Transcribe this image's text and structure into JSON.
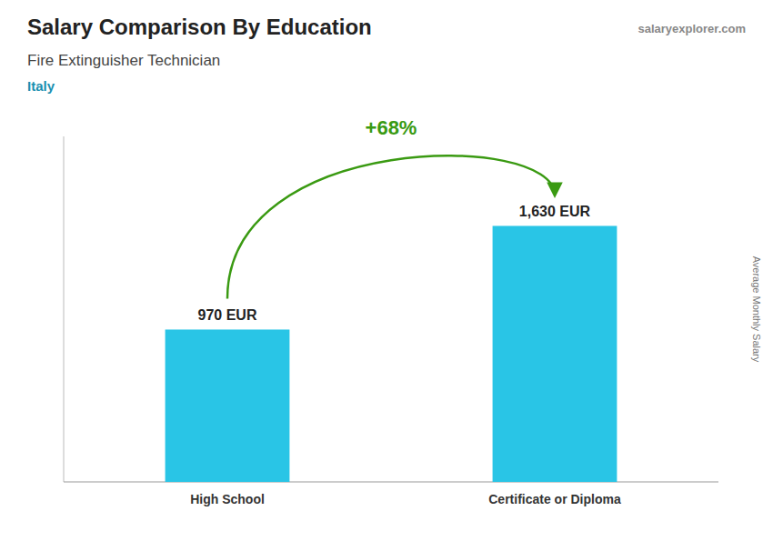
{
  "chart_data": {
    "type": "bar",
    "title": "Salary Comparison By Education",
    "subtitle": "Fire Extinguisher Technician",
    "annotations": [
      "Italy",
      "salaryexplorer.com",
      "+68%"
    ],
    "ylabel": "Average Monthly Salary",
    "categories": [
      "High School",
      "Certificate or Diploma"
    ],
    "values": [
      970,
      1630
    ],
    "value_labels": [
      "970 EUR",
      "1,630 EUR"
    ],
    "color": "#29C5E6",
    "ylim": [
      0,
      2200
    ],
    "data_labels": true,
    "tick_labels": "x"
  }
}
